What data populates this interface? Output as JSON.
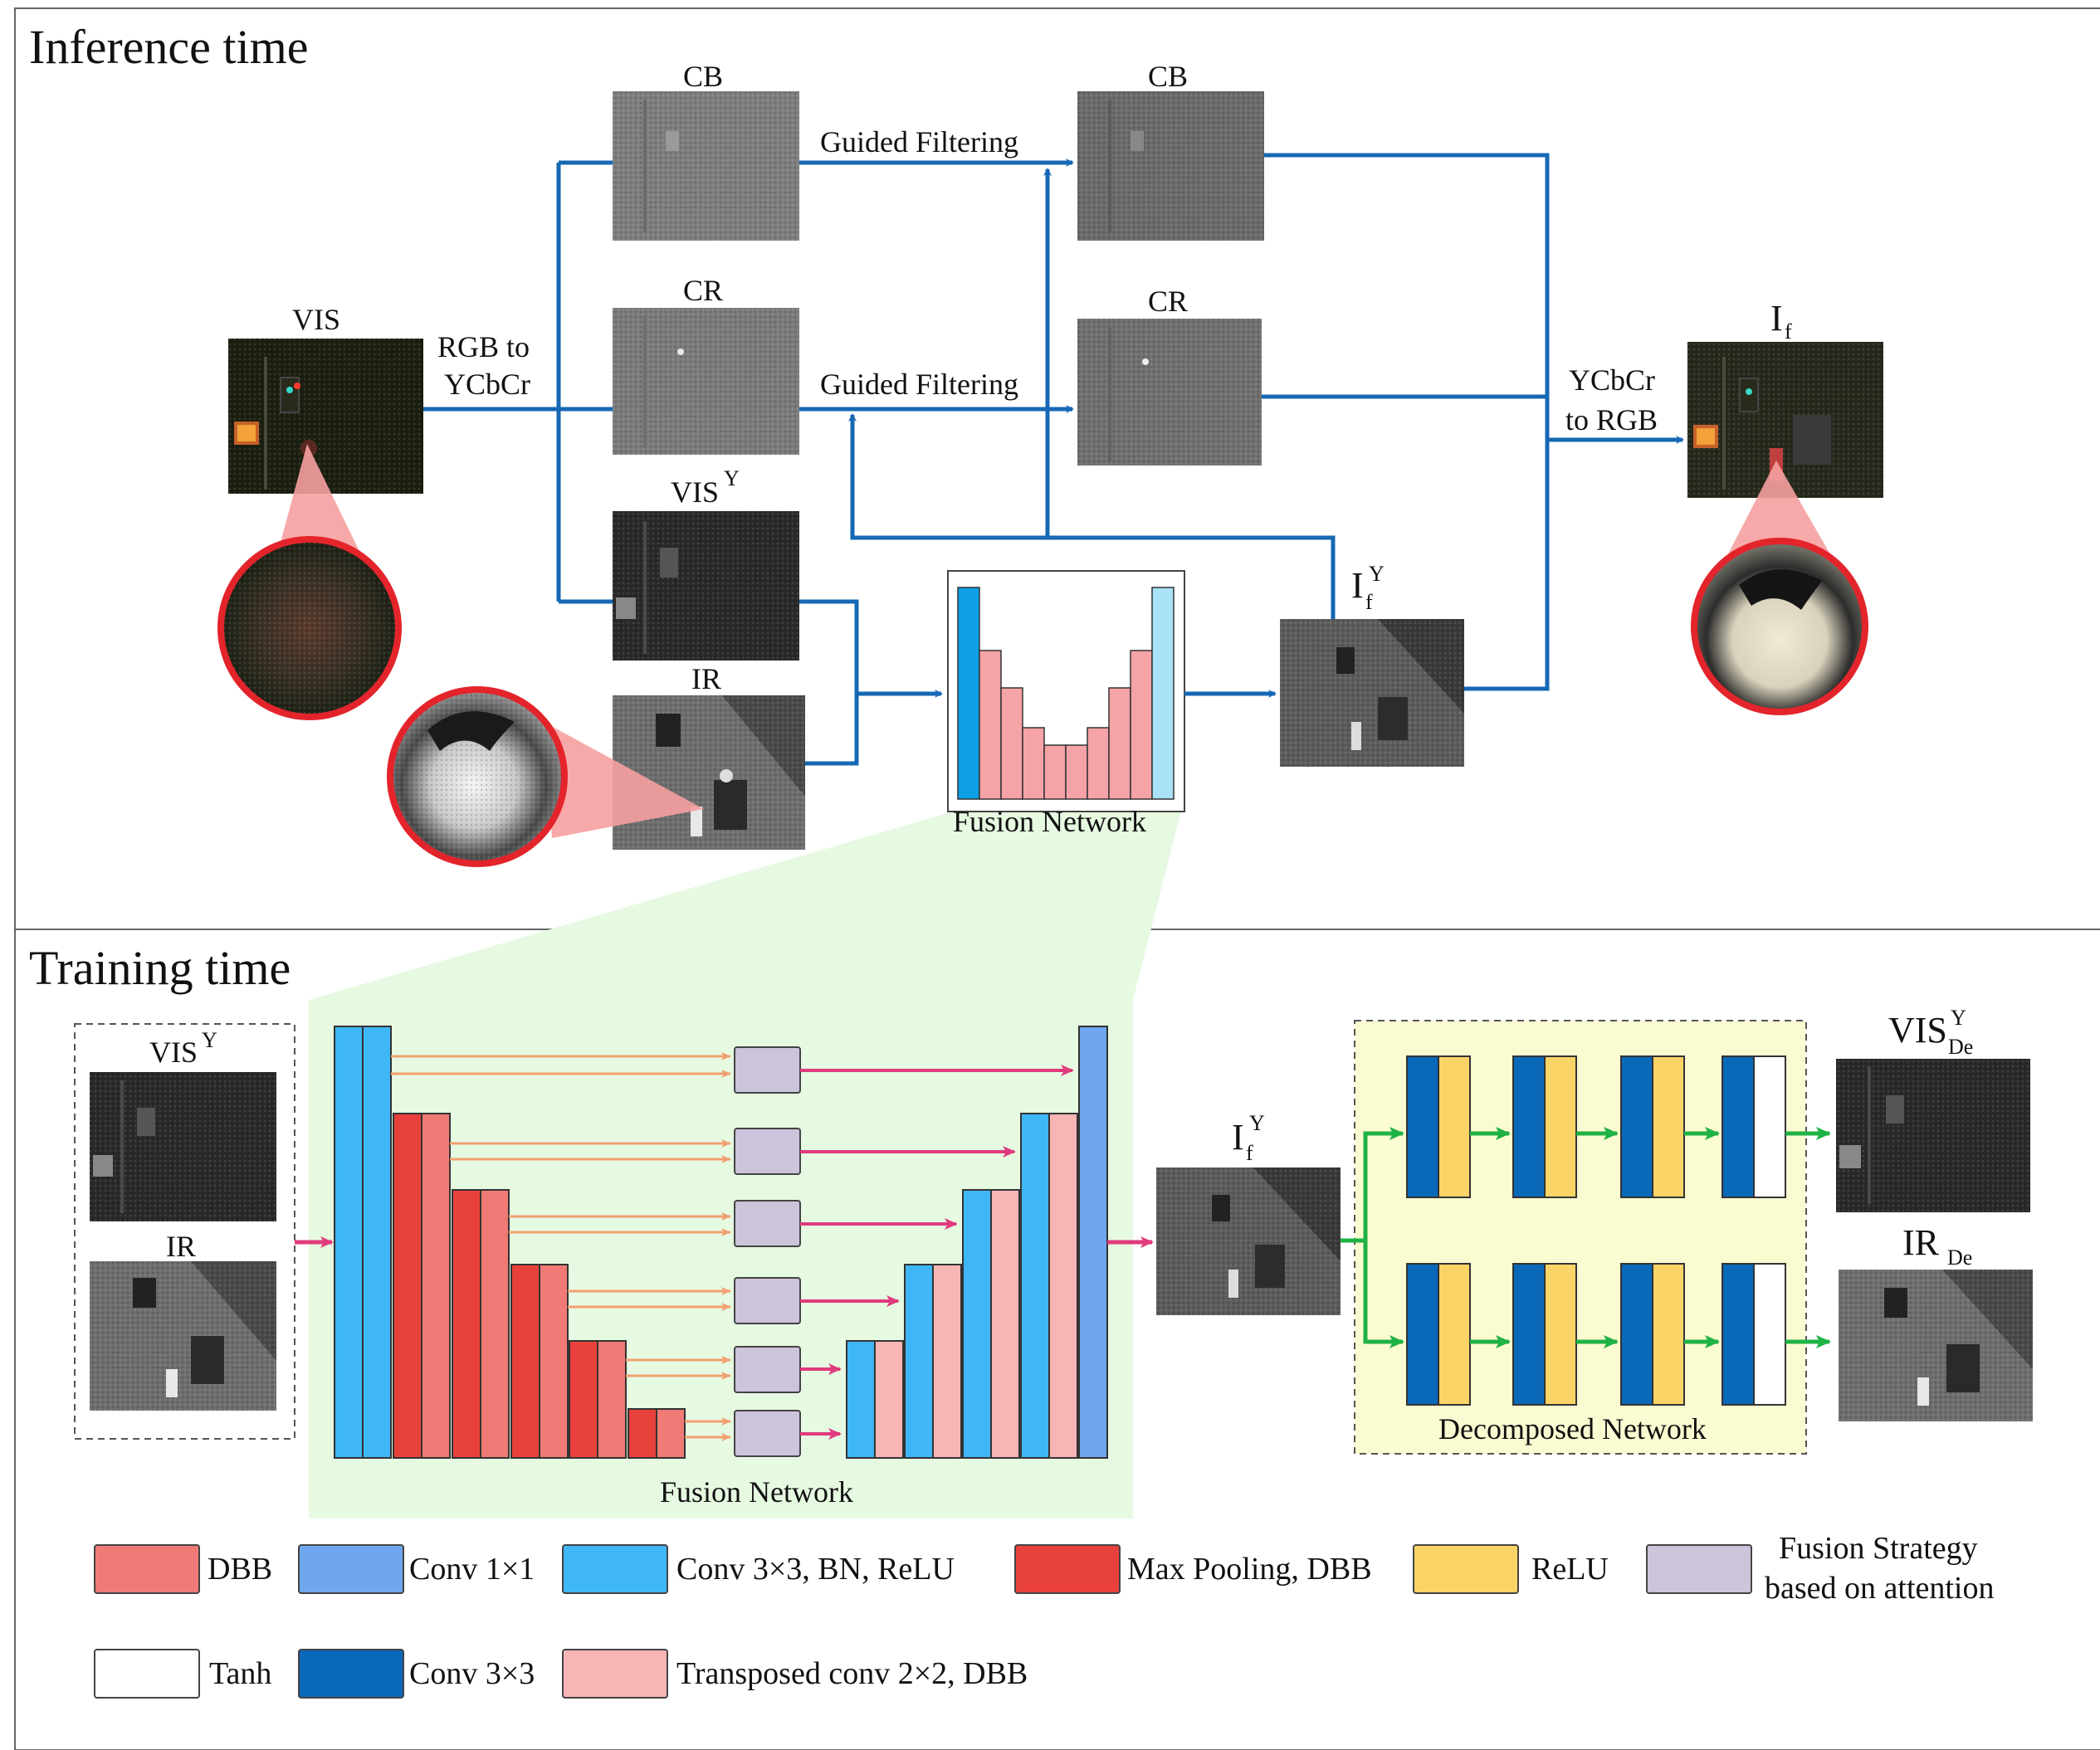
{
  "sections": {
    "inference_title": "Inference time",
    "training_title": "Training time"
  },
  "inference": {
    "vis_label": "VIS",
    "rgb_to_ycbcr_line1": "RGB to",
    "rgb_to_ycbcr_line2": "YCbCr",
    "cb_label": "CB",
    "cr_label": "CR",
    "visy_label": "VIS",
    "visy_sup": "Y",
    "ir_label": "IR",
    "guided_filtering_1": "Guided Filtering",
    "guided_filtering_2": "Guided Filtering",
    "cb_out_label": "CB",
    "cr_out_label": "CR",
    "fusion_network_label": "Fusion Network",
    "ify_label": "I",
    "ify_sub": "f",
    "ify_sup": "Y",
    "ycbcr_to_rgb_line1": "YCbCr",
    "ycbcr_to_rgb_line2": "to RGB",
    "if_label": "I",
    "if_sub": "f"
  },
  "training": {
    "visy_label": "VIS",
    "visy_sup": "Y",
    "ir_label": "IR",
    "fusion_network_label": "Fusion Network",
    "ify_label": "I",
    "ify_sub": "f",
    "ify_sup": "Y",
    "decomposed_network_label": "Decomposed Network",
    "vis_de_label": "VIS",
    "vis_de_sup": "Y",
    "vis_de_sub": "De",
    "ir_de_label": "IR",
    "ir_de_sub": "De"
  },
  "legend": [
    {
      "label": "DBB",
      "color": "#f07a75"
    },
    {
      "label": "Conv 1×1",
      "color": "#6fa7ee"
    },
    {
      "label": "Conv 3×3,  BN, ReLU",
      "color": "#3fb6f5"
    },
    {
      "label": "Max Pooling, DBB",
      "color": "#e8413c"
    },
    {
      "label": "ReLU",
      "color": "#fad466"
    },
    {
      "label": "Fusion Strategy",
      "label2": "based on attention",
      "color": "#cbc4da"
    },
    {
      "label": "Tanh",
      "color": "#ffffff"
    },
    {
      "label": "Conv 3×3",
      "color": "#0a68b9"
    },
    {
      "label": "Transposed conv 2×2, DBB",
      "color": "#f8b5b5"
    }
  ],
  "colors": {
    "blue_arrow": "#1668b5",
    "pink_arrow": "#e03b7d",
    "orange_arrow": "#f2a070",
    "green_arrow": "#1fb244",
    "fusion_bg": "#e6fae2",
    "decomp_bg": "#fbfbd2"
  }
}
